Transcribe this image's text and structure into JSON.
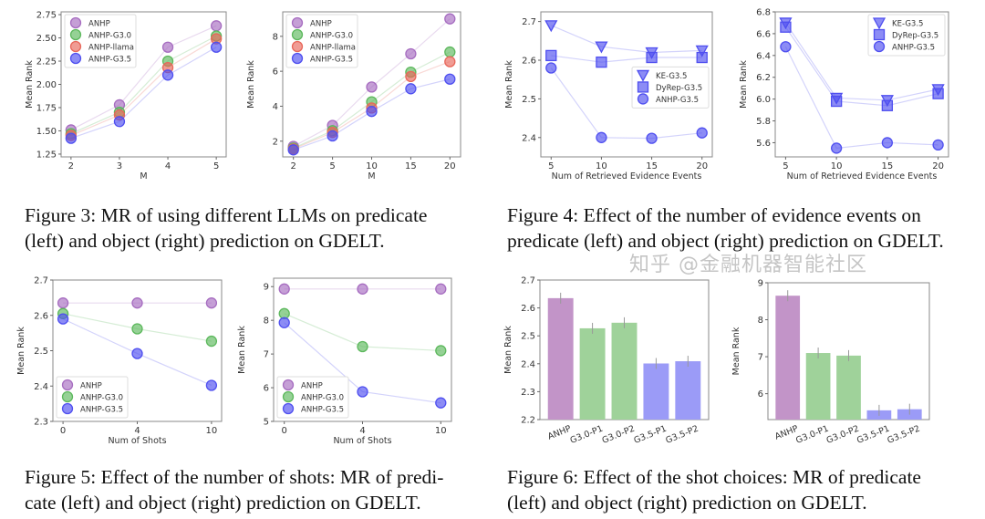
{
  "captions": [
    {
      "line1": "Figure 3:  MR of using different LLMs on predicate",
      "line2": "(left) and object (right) prediction on GDELT."
    },
    {
      "line1": "Figure 4:  Effect of the number of evidence events on",
      "line2": "predicate (left) and object (right) prediction on GDELT."
    },
    {
      "line1": "Figure 5: Effect of the number of shots: MR of predi-",
      "line2": "cate (left) and object (right) prediction on GDELT."
    },
    {
      "line1": "Figure 6: Effect of the shot choices: MR of predicate",
      "line2": "(left) and object (right) prediction on GDELT."
    }
  ],
  "watermark": "知乎 @金融机器智能社区",
  "colors": {
    "ANHP": "#a66cc0",
    "ANHP-G3.0": "#5cb85c",
    "ANHP-llama": "#e8675a",
    "ANHP-G3.5": "#4f4ff0",
    "bar_purple": "#c294c8",
    "bar_green": "#9fd29a",
    "bar_blue": "#9b9bf7"
  },
  "chart_data": [
    {
      "type": "line",
      "xlabel": "M",
      "ylabel": "Mean Rank",
      "x": [
        2,
        3,
        4,
        5
      ],
      "ylim": [
        1.22,
        2.78
      ],
      "yticks": [
        "1.25",
        "1.50",
        "1.75",
        "2.00",
        "2.25",
        "2.50",
        "2.75"
      ],
      "legend": "top-left",
      "series": [
        {
          "name": "ANHP",
          "values": [
            1.51,
            1.78,
            2.4,
            2.63
          ],
          "marker": "circle"
        },
        {
          "name": "ANHP-G3.0",
          "values": [
            1.47,
            1.7,
            2.25,
            2.52
          ],
          "marker": "circle"
        },
        {
          "name": "ANHP-llama",
          "values": [
            1.45,
            1.67,
            2.18,
            2.49
          ],
          "marker": "circle"
        },
        {
          "name": "ANHP-G3.5",
          "values": [
            1.42,
            1.6,
            2.1,
            2.4
          ],
          "marker": "circle"
        }
      ]
    },
    {
      "type": "line",
      "xlabel": "M",
      "ylabel": "Mean Rank",
      "x": [
        2,
        5,
        10,
        15,
        20
      ],
      "ylim": [
        1.1,
        9.4
      ],
      "yticks": [
        "2",
        "4",
        "6",
        "8"
      ],
      "legend": "top-left",
      "series": [
        {
          "name": "ANHP",
          "values": [
            1.7,
            2.9,
            5.1,
            7.0,
            9.0
          ],
          "marker": "circle"
        },
        {
          "name": "ANHP-G3.0",
          "values": [
            1.6,
            2.6,
            4.25,
            5.95,
            7.1
          ],
          "marker": "circle"
        },
        {
          "name": "ANHP-llama",
          "values": [
            1.55,
            2.5,
            3.9,
            5.7,
            6.55
          ],
          "marker": "circle"
        },
        {
          "name": "ANHP-G3.5",
          "values": [
            1.5,
            2.3,
            3.7,
            5.0,
            5.55
          ]
        }
      ]
    },
    {
      "type": "line",
      "xlabel": "Num of Retrieved Evidence Events",
      "ylabel": "Mean Rank",
      "x": [
        5,
        10,
        15,
        20
      ],
      "ylim": [
        2.35,
        2.725
      ],
      "yticks": [
        "2.4",
        "2.5",
        "2.6",
        "2.7"
      ],
      "legend": "center-right",
      "series": [
        {
          "name": "KE-G3.5",
          "values": [
            2.69,
            2.635,
            2.62,
            2.625
          ],
          "marker": "triangle-down"
        },
        {
          "name": "DyRep-G3.5",
          "values": [
            2.612,
            2.595,
            2.607,
            2.607
          ],
          "marker": "square"
        },
        {
          "name": "ANHP-G3.5",
          "values": [
            2.58,
            2.4,
            2.398,
            2.412
          ],
          "marker": "circle"
        }
      ]
    },
    {
      "type": "line",
      "xlabel": "Num of Retrieved Evidence Events",
      "ylabel": "Mean Rank",
      "x": [
        5,
        10,
        15,
        20
      ],
      "ylim": [
        5.47,
        6.8
      ],
      "yticks": [
        "5.6",
        "5.8",
        "6.0",
        "6.2",
        "6.4",
        "6.6",
        "6.8"
      ],
      "legend": "top-right",
      "series": [
        {
          "name": "KE-G3.5",
          "values": [
            6.7,
            6.01,
            5.99,
            6.09
          ],
          "marker": "triangle-down"
        },
        {
          "name": "DyRep-G3.5",
          "values": [
            6.66,
            5.98,
            5.94,
            6.05
          ],
          "marker": "square"
        },
        {
          "name": "ANHP-G3.5",
          "values": [
            6.48,
            5.55,
            5.6,
            5.58
          ],
          "marker": "circle"
        }
      ]
    },
    {
      "type": "line",
      "xlabel": "Num of Shots",
      "ylabel": "Mean Rank",
      "x": [
        0,
        4,
        10
      ],
      "ylim": [
        2.3,
        2.7
      ],
      "yticks": [
        "2.3",
        "2.4",
        "2.5",
        "2.6",
        "2.7"
      ],
      "legend": "bottom-left",
      "series": [
        {
          "name": "ANHP",
          "values": [
            2.635,
            2.635,
            2.635
          ],
          "marker": "circle"
        },
        {
          "name": "ANHP-G3.0",
          "values": [
            2.605,
            2.562,
            2.527
          ],
          "marker": "circle"
        },
        {
          "name": "ANHP-G3.5",
          "values": [
            2.59,
            2.492,
            2.402
          ],
          "marker": "circle"
        }
      ]
    },
    {
      "type": "line",
      "xlabel": "Num of Shots",
      "ylabel": "Mean Rank",
      "x": [
        0,
        4,
        10
      ],
      "ylim": [
        5,
        9.25
      ],
      "yticks": [
        "5",
        "6",
        "7",
        "8",
        "9"
      ],
      "legend": "bottom-left",
      "series": [
        {
          "name": "ANHP",
          "values": [
            8.93,
            8.93,
            8.93
          ],
          "marker": "circle"
        },
        {
          "name": "ANHP-G3.0",
          "values": [
            8.2,
            7.22,
            7.1
          ],
          "marker": "circle"
        },
        {
          "name": "ANHP-G3.5",
          "values": [
            7.93,
            5.88,
            5.55
          ],
          "marker": "circle"
        }
      ]
    },
    {
      "type": "bar",
      "xlabel": "",
      "ylabel": "Mean Rank",
      "categories": [
        "ANHP",
        "G3.0-P1",
        "G3.0-P2",
        "G3.5-P1",
        "G3.5-P2"
      ],
      "values": [
        2.635,
        2.527,
        2.547,
        2.401,
        2.409
      ],
      "ylim": [
        2.2,
        2.7
      ],
      "yticks": [
        "2.2",
        "2.3",
        "2.4",
        "2.5",
        "2.6",
        "2.7"
      ],
      "bar_colors": [
        "bar_purple",
        "bar_green",
        "bar_green",
        "bar_blue",
        "bar_blue"
      ]
    },
    {
      "type": "bar",
      "xlabel": "",
      "ylabel": "Mean Rank",
      "categories": [
        "ANHP",
        "G3.0-P1",
        "G3.0-P2",
        "G3.5-P1",
        "G3.5-P2"
      ],
      "values": [
        8.65,
        7.1,
        7.03,
        5.55,
        5.58
      ],
      "ylim": [
        5.3,
        9.0
      ],
      "yticks": [
        "6",
        "7",
        "8",
        "9"
      ],
      "bar_colors": [
        "bar_purple",
        "bar_green",
        "bar_green",
        "bar_blue",
        "bar_blue"
      ]
    }
  ]
}
